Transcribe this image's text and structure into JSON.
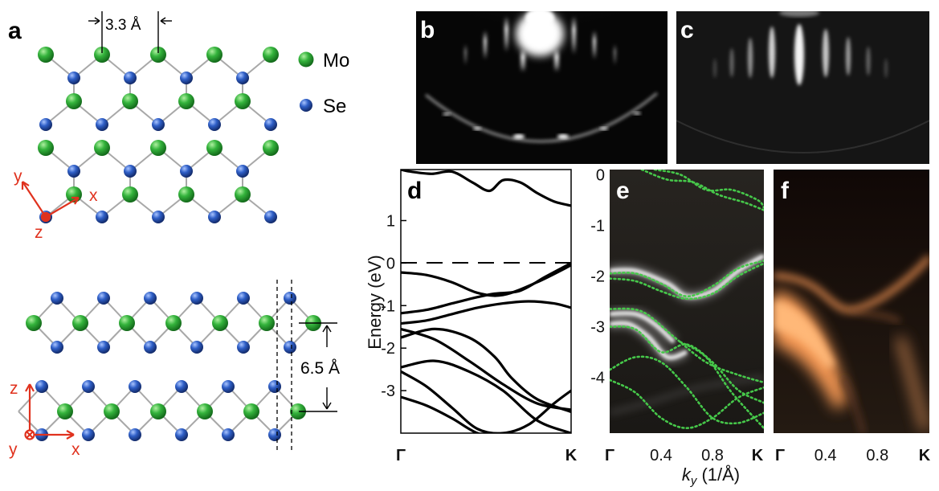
{
  "figure": {
    "panel_labels": {
      "a": "a",
      "b": "b",
      "c": "c",
      "d": "d",
      "e": "e",
      "f": "f"
    },
    "panel_a": {
      "lattice_constant": "3.3 Å",
      "interlayer_distance": "6.5 Å",
      "legend": [
        {
          "label": "Mo",
          "color": "#2fa23a"
        },
        {
          "label": "Se",
          "color": "#2a55b5"
        }
      ],
      "axes_top": {
        "x": "x",
        "y": "y",
        "z": "z"
      },
      "axes_bottom": {
        "x": "x",
        "y": "y",
        "z": "z"
      },
      "axis_color": "#e0321e"
    },
    "axes_shared": {
      "ylabel": "Energy (eV)",
      "xlabel_italic": "k",
      "xlabel_sub": "y",
      "xlabel_rest": " (1/Å)"
    }
  },
  "chart_data": [
    {
      "type": "line",
      "panel": "d",
      "ylabel": "Energy (eV)",
      "ylim": [
        -4,
        2.2
      ],
      "y_ticks": [
        1,
        0,
        -1,
        -2,
        -3
      ],
      "x_ticks": [
        "Γ",
        "K"
      ],
      "fermi_level": 0,
      "series": [
        {
          "x": [
            0,
            0.06,
            0.18,
            0.3,
            0.42,
            0.52,
            0.6,
            0.7,
            0.8,
            0.9,
            1.0
          ],
          "y": [
            2.2,
            2.15,
            2.1,
            2.15,
            1.9,
            1.7,
            1.95,
            1.9,
            1.65,
            1.45,
            1.35
          ]
        },
        {
          "x": [
            0,
            0.15,
            0.3,
            0.45,
            0.6,
            0.8,
            1.0
          ],
          "y": [
            -0.22,
            -0.28,
            -0.45,
            -0.7,
            -0.75,
            -0.45,
            -0.05
          ]
        },
        {
          "x": [
            0,
            0.15,
            0.3,
            0.45,
            0.55,
            0.7,
            0.85,
            1.0
          ],
          "y": [
            -1.18,
            -1.1,
            -0.95,
            -0.8,
            -0.72,
            -0.65,
            -0.32,
            0.0
          ]
        },
        {
          "x": [
            0,
            0.15,
            0.3,
            0.45,
            0.6,
            0.75,
            0.9,
            1.0
          ],
          "y": [
            -1.42,
            -1.35,
            -1.2,
            -1.05,
            -0.95,
            -0.9,
            -0.95,
            -1.05
          ]
        },
        {
          "x": [
            0,
            0.2,
            0.4,
            0.6,
            0.8,
            1.0
          ],
          "y": [
            -1.55,
            -1.8,
            -2.3,
            -2.85,
            -3.3,
            -3.45
          ]
        },
        {
          "x": [
            0,
            0.2,
            0.4,
            0.55,
            0.65,
            0.8,
            1.0
          ],
          "y": [
            -1.75,
            -1.55,
            -1.75,
            -2.2,
            -2.7,
            -3.2,
            -3.5
          ]
        },
        {
          "x": [
            0,
            0.2,
            0.4,
            0.6,
            0.8,
            1.0
          ],
          "y": [
            -2.45,
            -2.3,
            -2.55,
            -3.0,
            -3.7,
            -4.0
          ]
        },
        {
          "x": [
            0,
            0.15,
            0.3,
            0.45,
            0.6,
            0.75,
            0.9,
            1.0
          ],
          "y": [
            -2.55,
            -2.9,
            -3.4,
            -3.9,
            -4.0,
            -3.8,
            -3.3,
            -3.0
          ]
        },
        {
          "x": [
            0,
            0.15,
            0.3,
            0.45,
            0.6,
            0.8,
            1.0
          ],
          "y": [
            -3.15,
            -3.35,
            -3.65,
            -4.0,
            -4.1,
            -4.1,
            -4.0
          ]
        }
      ]
    },
    {
      "type": "heatmap",
      "panel": "e",
      "xlabel": "k_y (1/Å)",
      "ylim": [
        -5.1,
        0.1
      ],
      "y_ticks": [
        0,
        -1,
        -2,
        -3,
        -4
      ],
      "x_ticks": [
        "Γ",
        "0.4",
        "0.8",
        "K"
      ],
      "xlim": [
        0,
        1.2
      ],
      "calc_overlay_color": "#46c84a",
      "bands_exp": [
        {
          "x": [
            0,
            0.2,
            0.45,
            0.6,
            0.8,
            1.0,
            1.2
          ],
          "y": [
            -1.9,
            -1.9,
            -2.15,
            -2.4,
            -2.3,
            -1.9,
            -1.6
          ]
        },
        {
          "x": [
            0,
            0.2,
            0.35,
            0.5
          ],
          "y": [
            -2.75,
            -2.75,
            -2.95,
            -3.3
          ]
        },
        {
          "x": [
            0,
            0.15,
            0.3,
            0.45,
            0.6
          ],
          "y": [
            -2.95,
            -2.95,
            -3.2,
            -3.6,
            -3.5
          ]
        }
      ],
      "bands_calc": [
        {
          "x": [
            0.25,
            0.45,
            0.65,
            0.85,
            1.05,
            1.2
          ],
          "y": [
            0.1,
            -0.1,
            -0.15,
            -0.4,
            -0.55,
            -0.7
          ]
        },
        {
          "x": [
            0.35,
            0.55,
            0.75,
            0.95,
            1.15,
            1.2
          ],
          "y": [
            0.1,
            0.0,
            -0.3,
            -0.3,
            -0.5,
            -0.65
          ]
        },
        {
          "x": [
            0,
            0.2,
            0.4,
            0.6,
            0.8,
            1.0,
            1.2
          ],
          "y": [
            -1.95,
            -1.95,
            -2.15,
            -2.4,
            -2.2,
            -1.85,
            -1.7
          ]
        },
        {
          "x": [
            0,
            0.2,
            0.4,
            0.6,
            0.8,
            1.0,
            1.2
          ],
          "y": [
            -2.05,
            -2.1,
            -2.3,
            -2.45,
            -2.35,
            -2.0,
            -1.75
          ]
        },
        {
          "x": [
            0,
            0.25,
            0.5,
            0.75,
            1.0,
            1.2
          ],
          "y": [
            -2.65,
            -2.7,
            -3.2,
            -3.7,
            -3.95,
            -4.1
          ]
        },
        {
          "x": [
            0,
            0.2,
            0.4,
            0.6,
            0.8,
            1.0,
            1.2
          ],
          "y": [
            -3.0,
            -3.05,
            -3.5,
            -3.35,
            -3.7,
            -4.25,
            -4.5
          ]
        },
        {
          "x": [
            0,
            0.2,
            0.4,
            0.6,
            0.8,
            1.0,
            1.2
          ],
          "y": [
            -3.85,
            -3.6,
            -3.7,
            -4.2,
            -4.8,
            -4.9,
            -4.7
          ]
        },
        {
          "x": [
            0,
            0.2,
            0.4,
            0.6,
            0.8,
            1.0,
            1.2
          ],
          "y": [
            -4.05,
            -4.3,
            -4.8,
            -5.0,
            -4.8,
            -4.4,
            -4.2
          ]
        },
        {
          "x": [
            0.55,
            0.75,
            0.95,
            1.2
          ],
          "y": [
            -3.3,
            -3.6,
            -4.3,
            -5.0
          ]
        }
      ]
    },
    {
      "type": "heatmap",
      "panel": "f",
      "x_ticks": [
        "Γ",
        "0.4",
        "0.8",
        "K"
      ],
      "colormap": [
        "#1a120d",
        "#ffa45c"
      ]
    }
  ]
}
